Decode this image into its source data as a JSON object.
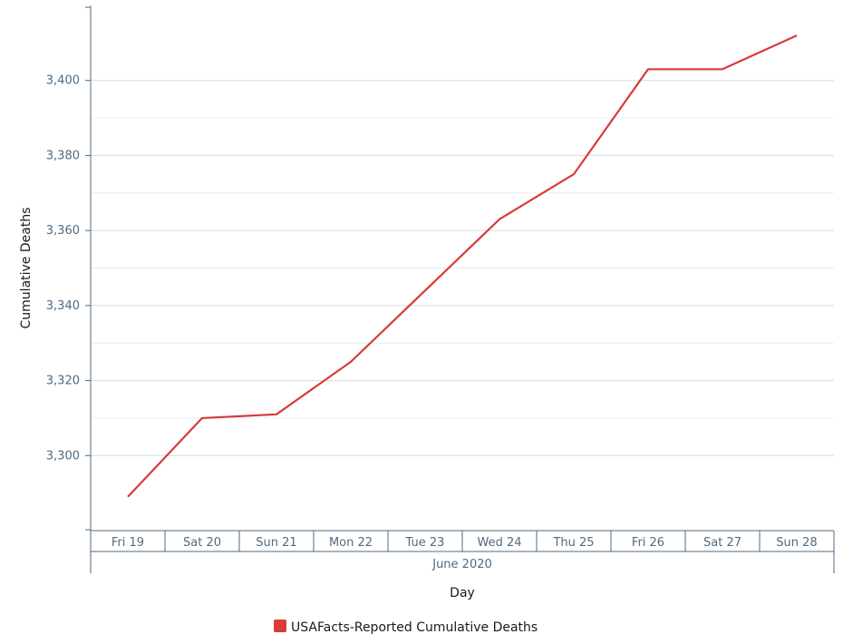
{
  "chart_data": {
    "type": "line",
    "title": "",
    "xlabel": "Day",
    "ylabel": "Cumulative Deaths",
    "x_group_label": "June 2020",
    "categories": [
      "Fri 19",
      "Sat 20",
      "Sun 21",
      "Mon 22",
      "Tue 23",
      "Wed 24",
      "Thu 25",
      "Fri 26",
      "Sat 27",
      "Sun 28"
    ],
    "series": [
      {
        "name": "USAFacts-Reported Cumulative Deaths",
        "color": "#d93a3a",
        "values": [
          3289,
          3310,
          3311,
          3325,
          3344,
          3363,
          3375,
          3403,
          3403,
          3412
        ]
      }
    ],
    "ylim": [
      3280,
      3420
    ],
    "yticks": [
      3300,
      3320,
      3340,
      3360,
      3380,
      3400
    ],
    "ytick_labels": [
      "3,300",
      "3,320",
      "3,340",
      "3,360",
      "3,380",
      "3,400"
    ],
    "grid": true,
    "legend": "bottom"
  }
}
